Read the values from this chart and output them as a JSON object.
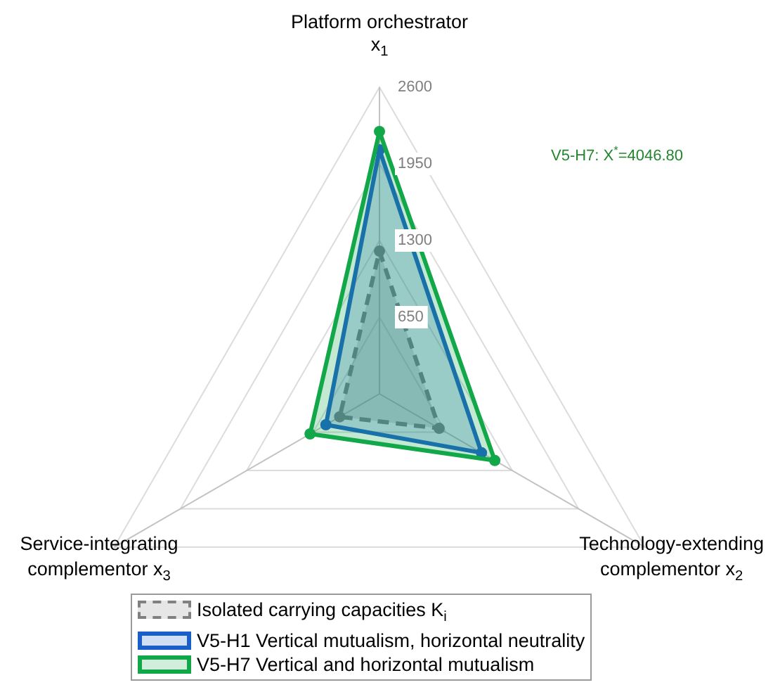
{
  "chart_data": {
    "type": "radar",
    "categories": [
      "Platform orchestrator x$_{1}$",
      "Technology-extending complementor x$_{2}$",
      "Service-integrating complementor x$_{3}$"
    ],
    "series": [
      {
        "name": "Isolated carrying capacities K$_{i}$",
        "color": "#808080",
        "line_style": "dashed",
        "values": [
          1210,
          585,
          390
        ]
      },
      {
        "name": "V5-H1 Vertical mutualism, horizontal neutrality",
        "color": "#1a5fc8",
        "values": [
          2070,
          1000,
          525
        ]
      },
      {
        "name": "V5-H7 Vertical and horizontal mutualism",
        "color": "#12a84a",
        "values": [
          2225,
          1130,
          680
        ]
      }
    ],
    "ylim": [
      0,
      2600
    ],
    "yticks": [
      650,
      1300,
      1950,
      2600
    ],
    "grid": true,
    "legend": "bottom",
    "marker": "circle",
    "annotations": [
      "V5-H7: X$^{*}$=4046.80"
    ]
  }
}
